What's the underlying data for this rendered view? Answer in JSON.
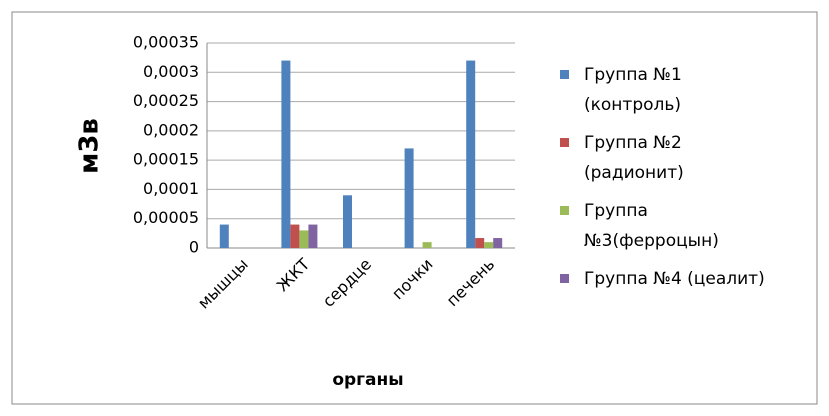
{
  "chart_data": {
    "type": "bar",
    "y_label": "м3в",
    "x_label": "органы",
    "categories": [
      "мышцы",
      "ЖКТ",
      "сердце",
      "почки",
      "печень"
    ],
    "series": [
      {
        "name": "Группа №1 (контроль)",
        "color": "#4f81bd",
        "values": [
          4e-05,
          0.00032,
          9e-05,
          0.00017,
          0.00032
        ]
      },
      {
        "name": "Группа №2 (радионит)",
        "color": "#c0504d",
        "values": [
          0,
          4e-05,
          0,
          0,
          1.7e-05
        ]
      },
      {
        "name": "Группа №3(ферроцын)",
        "color": "#9bbb59",
        "values": [
          0,
          3e-05,
          0,
          1e-05,
          1e-05
        ]
      },
      {
        "name": "Группа №4 (цеалит)",
        "color": "#8064a2",
        "values": [
          0,
          4e-05,
          0,
          0,
          1.7e-05
        ]
      }
    ],
    "ylim": [
      0,
      0.00035
    ],
    "yticks": [
      0,
      {
        "value": 5e-05,
        "label": "0,00005"
      },
      {
        "value": 0.0001,
        "label": "0,0001"
      },
      {
        "value": 0.00015,
        "label": "0,00015"
      },
      {
        "value": 0.0002,
        "label": "0,0002"
      },
      {
        "value": 0.00025,
        "label": "0,00025"
      },
      {
        "value": 0.0003,
        "label": "0,0003"
      },
      {
        "value": 0.00035,
        "label": "0,00035"
      }
    ],
    "grid": true,
    "legend": "right"
  }
}
